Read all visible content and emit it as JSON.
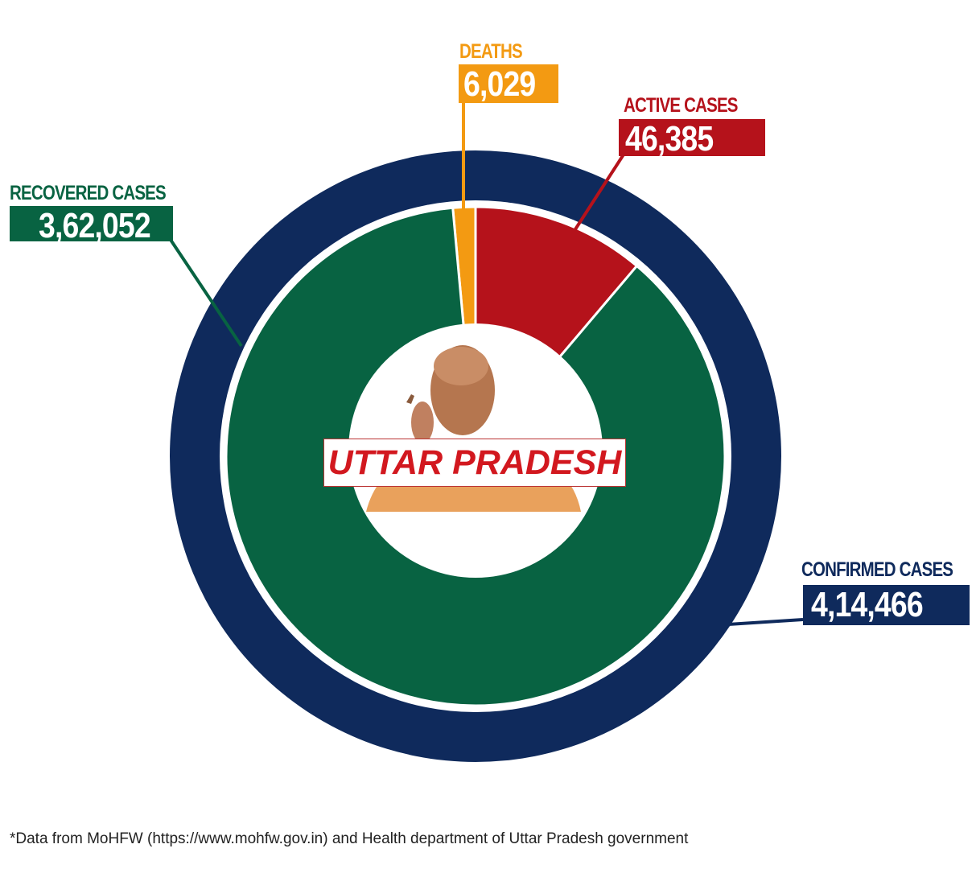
{
  "chart_data": {
    "type": "pie",
    "title": "UTTAR PRADESH",
    "total": {
      "label": "CONFIRMED CASES",
      "value": 414466,
      "display": "4,14,466",
      "color": "#0f2a5c"
    },
    "slices": [
      {
        "label": "DEATHS",
        "value": 6029,
        "display": "6,029",
        "color": "#f39a12"
      },
      {
        "label": "ACTIVE CASES",
        "value": 46385,
        "display": "46,385",
        "color": "#b5121b"
      },
      {
        "label": "RECOVERED CASES",
        "value": 362052,
        "display": "3,62,052",
        "color": "#086342"
      }
    ],
    "footnote": "*Data from MoHFW (https://www.mohfw.gov.in) and Health department of Uttar Pradesh government"
  }
}
